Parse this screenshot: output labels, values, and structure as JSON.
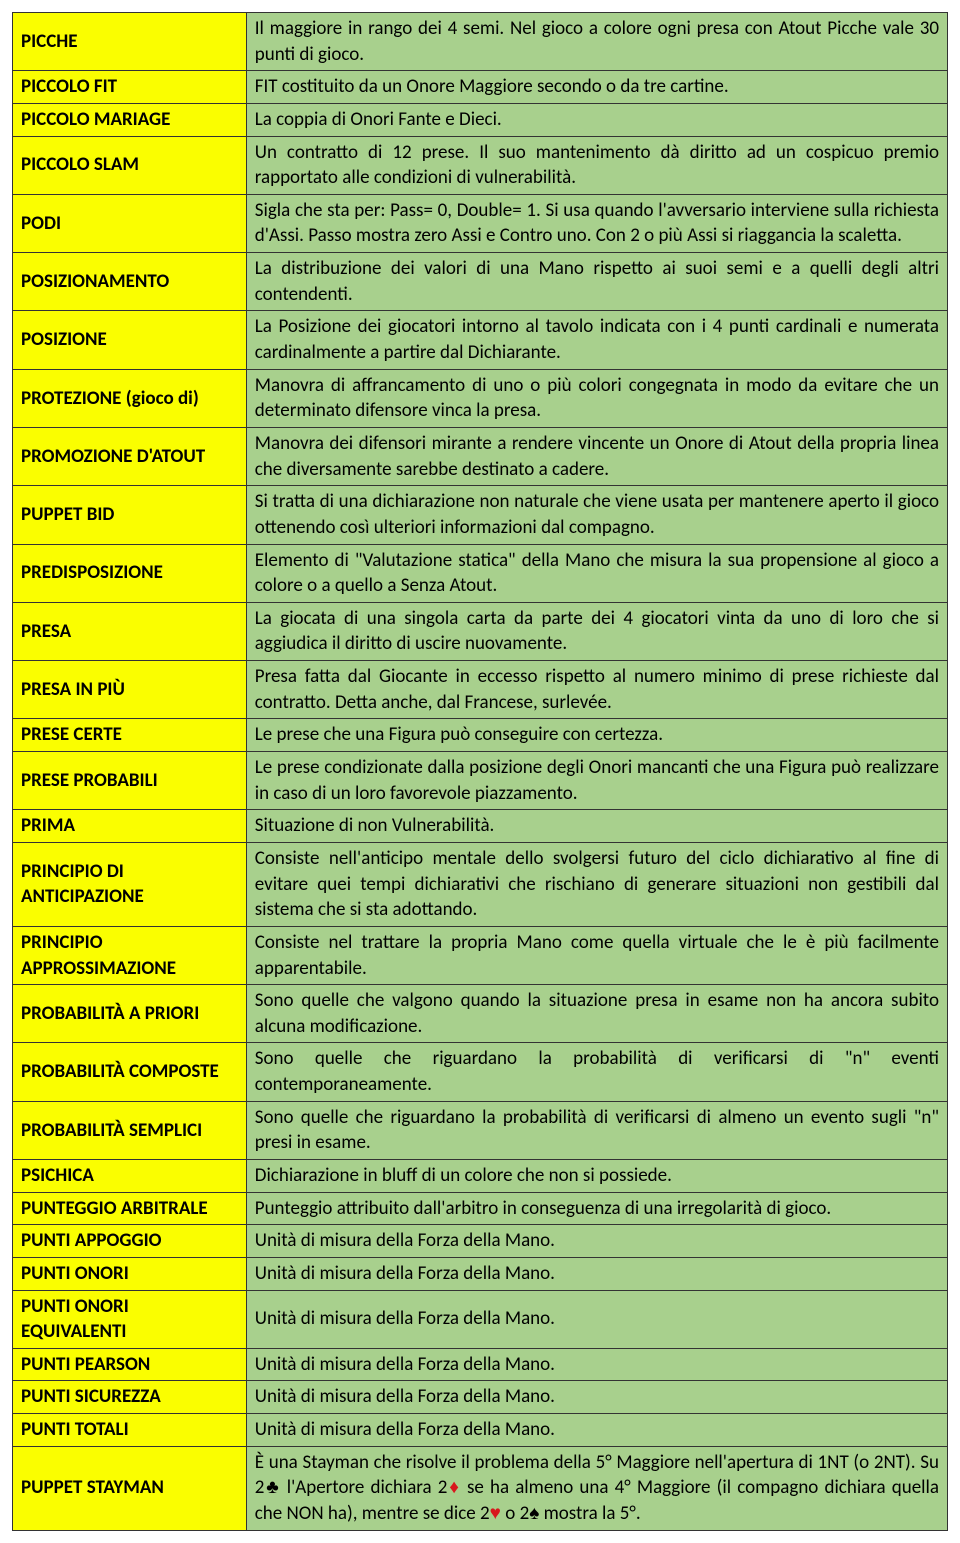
{
  "colors": {
    "term_bg": "#fafe00",
    "def_bg": "#a8d08d",
    "border": "#333333",
    "suit_red": "#d8171d",
    "suit_black": "#000000"
  },
  "typography": {
    "font_family": "Calibri",
    "font_size_pt": 14,
    "term_weight": "bold"
  },
  "layout": {
    "term_col_width_pct": 25,
    "def_col_width_pct": 75
  },
  "rows": [
    {
      "term": "PICCHE",
      "def": "Il maggiore in rango dei 4 semi. Nel gioco a colore ogni presa con Atout Picche vale 30 punti di gioco."
    },
    {
      "term": "PICCOLO FIT",
      "def": "FIT costituito da un Onore Maggiore secondo o da tre cartine."
    },
    {
      "term": "PICCOLO MARIAGE",
      "def": "La coppia di Onori Fante e Dieci."
    },
    {
      "term": "PICCOLO SLAM",
      "def": "Un contratto di 12 prese. Il suo mantenimento dà diritto ad un cospicuo premio rapportato alle condizioni di vulnerabilità."
    },
    {
      "term": "PODI",
      "def": "Sigla che sta per: Pass= 0, Double= 1. Si usa quando l'avversario interviene sulla richiesta d'Assi. Passo mostra zero Assi e Contro uno. Con 2 o più Assi si riaggancia la scaletta."
    },
    {
      "term": "POSIZIONAMENTO",
      "def": "La distribuzione dei valori di una Mano rispetto ai suoi semi e a quelli degli altri contendenti."
    },
    {
      "term": "POSIZIONE",
      "def": "La Posizione dei giocatori intorno al tavolo indicata con i 4 punti cardinali e numerata cardinalmente a partire dal Dichiarante."
    },
    {
      "term": "PROTEZIONE (gioco di)",
      "def": "Manovra di affrancamento di uno o più colori congegnata in modo da evitare che un determinato difensore vinca la presa."
    },
    {
      "term": "PROMOZIONE D'ATOUT",
      "def": "Manovra dei difensori mirante a rendere vincente un Onore di Atout della propria linea che diversamente sarebbe destinato a cadere."
    },
    {
      "term": "PUPPET BID",
      "def": "Si tratta di una dichiarazione non naturale che viene usata per mantenere aperto il gioco ottenendo così ulteriori informazioni dal compagno."
    },
    {
      "term": "PREDISPOSIZIONE",
      "def": "Elemento di \"Valutazione statica\" della Mano che misura la sua propensione al gioco a colore o a quello a Senza Atout."
    },
    {
      "term": "PRESA",
      "def": "La giocata di una singola carta da parte dei 4 giocatori vinta da uno di loro che si aggiudica il diritto di uscire nuovamente."
    },
    {
      "term": "PRESA IN PIÙ",
      "def": "Presa fatta dal Giocante in eccesso rispetto al numero minimo di prese richieste dal contratto. Detta anche, dal Francese, surlevée."
    },
    {
      "term": "PRESE CERTE",
      "def": "Le prese che una Figura può conseguire con certezza."
    },
    {
      "term": "PRESE PROBABILI",
      "def": "Le prese condizionate dalla posizione degli Onori mancanti che una Figura può realizzare in caso di un loro favorevole piazzamento."
    },
    {
      "term": "PRIMA",
      "def": "Situazione di non Vulnerabilità."
    },
    {
      "term": "PRINCIPIO DI ANTICIPAZIONE",
      "def": "Consiste nell'anticipo mentale dello svolgersi futuro del ciclo dichiarativo al fine di evitare quei tempi dichiarativi che rischiano di generare situazioni non gestibili dal sistema che si sta adottando."
    },
    {
      "term": "PRINCIPIO APPROSSIMAZIONE",
      "def": "Consiste nel trattare la propria Mano come quella virtuale che le è più facilmente apparentabile."
    },
    {
      "term": "PROBABILITÀ A PRIORI",
      "def": "Sono quelle che valgono quando la situazione presa in esame non ha ancora subito alcuna modificazione."
    },
    {
      "term": "PROBABILITÀ COMPOSTE",
      "def": "Sono quelle che riguardano la probabilità di verificarsi di \"n\" eventi contemporaneamente."
    },
    {
      "term": "PROBABILITÀ SEMPLICI",
      "def": "Sono quelle che riguardano la probabilità di verificarsi di almeno un evento sugli \"n\" presi in esame."
    },
    {
      "term": "PSICHICA",
      "def": "Dichiarazione in bluff di un colore che non si possiede."
    },
    {
      "term": "PUNTEGGIO ARBITRALE",
      "def": "Punteggio attribuito dall'arbitro in conseguenza di una irregolarità di gioco."
    },
    {
      "term": "PUNTI APPOGGIO",
      "def": "Unità di misura della Forza della Mano."
    },
    {
      "term": "PUNTI ONORI",
      "def": "Unità di misura della Forza della Mano."
    },
    {
      "term": "PUNTI ONORI EQUIVALENTI",
      "def": "Unità di misura della Forza della Mano."
    },
    {
      "term": "PUNTI PEARSON",
      "def": "Unità di misura della Forza della Mano."
    },
    {
      "term": "PUNTI SICUREZZA",
      "def": "Unità di misura della Forza della Mano."
    },
    {
      "term": "PUNTI TOTALI",
      "def": "Unità di misura della Forza della Mano."
    },
    {
      "term": "PUPPET STAYMAN",
      "def_parts": [
        {
          "text": "È una Stayman che risolve il problema della 5° Maggiore nell'apertura di 1NT (o 2NT). Su 2"
        },
        {
          "suit": "♣",
          "color": "black"
        },
        {
          "text": " l'Apertore dichiara 2"
        },
        {
          "suit": "♦",
          "color": "red"
        },
        {
          "text": " se ha almeno una 4° Maggiore (il compagno dichiara quella che NON ha), mentre se dice 2"
        },
        {
          "suit": "♥",
          "color": "red"
        },
        {
          "text": " o 2"
        },
        {
          "suit": "♠",
          "color": "black"
        },
        {
          "text": " mostra la 5°."
        }
      ]
    }
  ]
}
